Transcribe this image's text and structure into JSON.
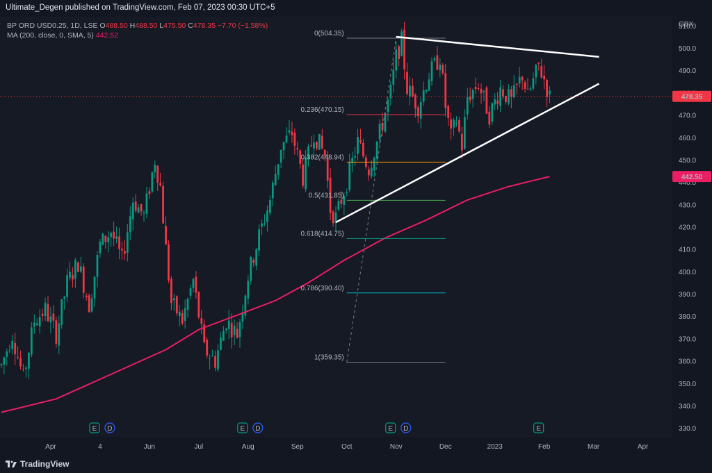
{
  "header": {
    "published": "Ultimate_Degen published on TradingView.com, Feb 07, 2023 00:30 UTC+5"
  },
  "legend": {
    "symbol": "BP ORD USD0.25, 1D, LSE",
    "o_label": "O",
    "o_value": "488.50",
    "h_label": "H",
    "h_value": "488.50",
    "l_label": "L",
    "l_value": "475.50",
    "c_label": "C",
    "c_value": "478.35",
    "change": "−7.70 (−1.58%)",
    "ma_label": "MA (200, close, 0, SMA, 5)",
    "ma_value": "442.52"
  },
  "currency": "GBX",
  "footer": {
    "brand": "TradingView"
  },
  "colors": {
    "up": "#089981",
    "down": "#f23645",
    "ma": "#e91e63",
    "background": "#161a25"
  },
  "chart_data": {
    "type": "candlestick",
    "ylim": [
      326,
      514
    ],
    "y_ticks": [
      330,
      340,
      350,
      360,
      370,
      380,
      390,
      400,
      410,
      420,
      430,
      440,
      450,
      460,
      470,
      480,
      490,
      500,
      510
    ],
    "x_ticks": [
      {
        "label": "Apr",
        "idx": 18
      },
      {
        "label": "4",
        "idx": 36
      },
      {
        "label": "Jun",
        "idx": 54
      },
      {
        "label": "Jul",
        "idx": 72
      },
      {
        "label": "Aug",
        "idx": 90
      },
      {
        "label": "Sep",
        "idx": 108
      },
      {
        "label": "Oct",
        "idx": 126
      },
      {
        "label": "Nov",
        "idx": 144
      },
      {
        "label": "Dec",
        "idx": 162
      },
      {
        "label": "2023",
        "idx": 180
      },
      {
        "label": "Feb",
        "idx": 198
      },
      {
        "label": "Mar",
        "idx": 216
      },
      {
        "label": "Apr",
        "idx": 234
      }
    ],
    "total_slots": 245,
    "last_price": "478.35",
    "ma_last": "442.50",
    "fibonacci": [
      {
        "label": "0(504.35)",
        "value": 504.35,
        "color": "#787b86"
      },
      {
        "label": "0.236(470.15)",
        "value": 470.15,
        "color": "#f23645"
      },
      {
        "label": "0.382(448.94)",
        "value": 448.94,
        "color": "#ff9800"
      },
      {
        "label": "0.5(431.85)",
        "value": 431.85,
        "color": "#4caf50"
      },
      {
        "label": "0.618(414.75)",
        "value": 414.75,
        "color": "#089981"
      },
      {
        "label": "0.786(390.40)",
        "value": 390.4,
        "color": "#00bcd4"
      },
      {
        "label": "1(359.35)",
        "value": 359.35,
        "color": "#787b86"
      }
    ],
    "ma_series": [
      [
        0,
        337
      ],
      [
        20,
        343
      ],
      [
        40,
        354
      ],
      [
        60,
        365
      ],
      [
        72,
        374
      ],
      [
        85,
        380
      ],
      [
        100,
        387
      ],
      [
        112,
        395
      ],
      [
        125,
        405
      ],
      [
        140,
        415
      ],
      [
        155,
        423
      ],
      [
        170,
        432
      ],
      [
        185,
        438
      ],
      [
        200,
        442.5
      ]
    ],
    "trendlines": [
      {
        "from": [
          144,
          505
        ],
        "to": [
          218,
          496
        ]
      },
      {
        "from": [
          122,
          422
        ],
        "to": [
          218,
          484
        ]
      }
    ],
    "events": [
      {
        "idx": 36,
        "kinds": [
          "E",
          "D"
        ]
      },
      {
        "idx": 90,
        "kinds": [
          "E",
          "D"
        ]
      },
      {
        "idx": 144,
        "kinds": [
          "E",
          "D"
        ]
      },
      {
        "idx": 198,
        "kinds": [
          "E"
        ]
      }
    ],
    "price_path": [
      [
        0,
        358
      ],
      [
        4,
        372
      ],
      [
        8,
        352
      ],
      [
        12,
        378
      ],
      [
        16,
        383
      ],
      [
        20,
        372
      ],
      [
        24,
        395
      ],
      [
        28,
        404
      ],
      [
        32,
        385
      ],
      [
        36,
        412
      ],
      [
        40,
        418
      ],
      [
        44,
        405
      ],
      [
        48,
        432
      ],
      [
        52,
        425
      ],
      [
        56,
        450
      ],
      [
        58,
        438
      ],
      [
        60,
        410
      ],
      [
        62,
        386
      ],
      [
        66,
        378
      ],
      [
        70,
        396
      ],
      [
        74,
        365
      ],
      [
        78,
        360
      ],
      [
        82,
        378
      ],
      [
        86,
        372
      ],
      [
        90,
        398
      ],
      [
        94,
        416
      ],
      [
        98,
        432
      ],
      [
        102,
        456
      ],
      [
        106,
        462
      ],
      [
        110,
        442
      ],
      [
        114,
        462
      ],
      [
        118,
        452
      ],
      [
        120,
        428
      ],
      [
        122,
        424
      ],
      [
        126,
        440
      ],
      [
        130,
        458
      ],
      [
        134,
        446
      ],
      [
        138,
        462
      ],
      [
        142,
        480
      ],
      [
        144,
        496
      ],
      [
        146,
        503
      ],
      [
        148,
        482
      ],
      [
        152,
        474
      ],
      [
        156,
        488
      ],
      [
        160,
        496
      ],
      [
        162,
        474
      ],
      [
        164,
        460
      ],
      [
        166,
        468
      ],
      [
        168,
        456
      ],
      [
        170,
        478
      ],
      [
        174,
        484
      ],
      [
        178,
        470
      ],
      [
        182,
        482
      ],
      [
        186,
        476
      ],
      [
        190,
        488
      ],
      [
        192,
        478
      ],
      [
        196,
        492
      ],
      [
        198,
        486
      ],
      [
        200,
        478
      ]
    ]
  }
}
